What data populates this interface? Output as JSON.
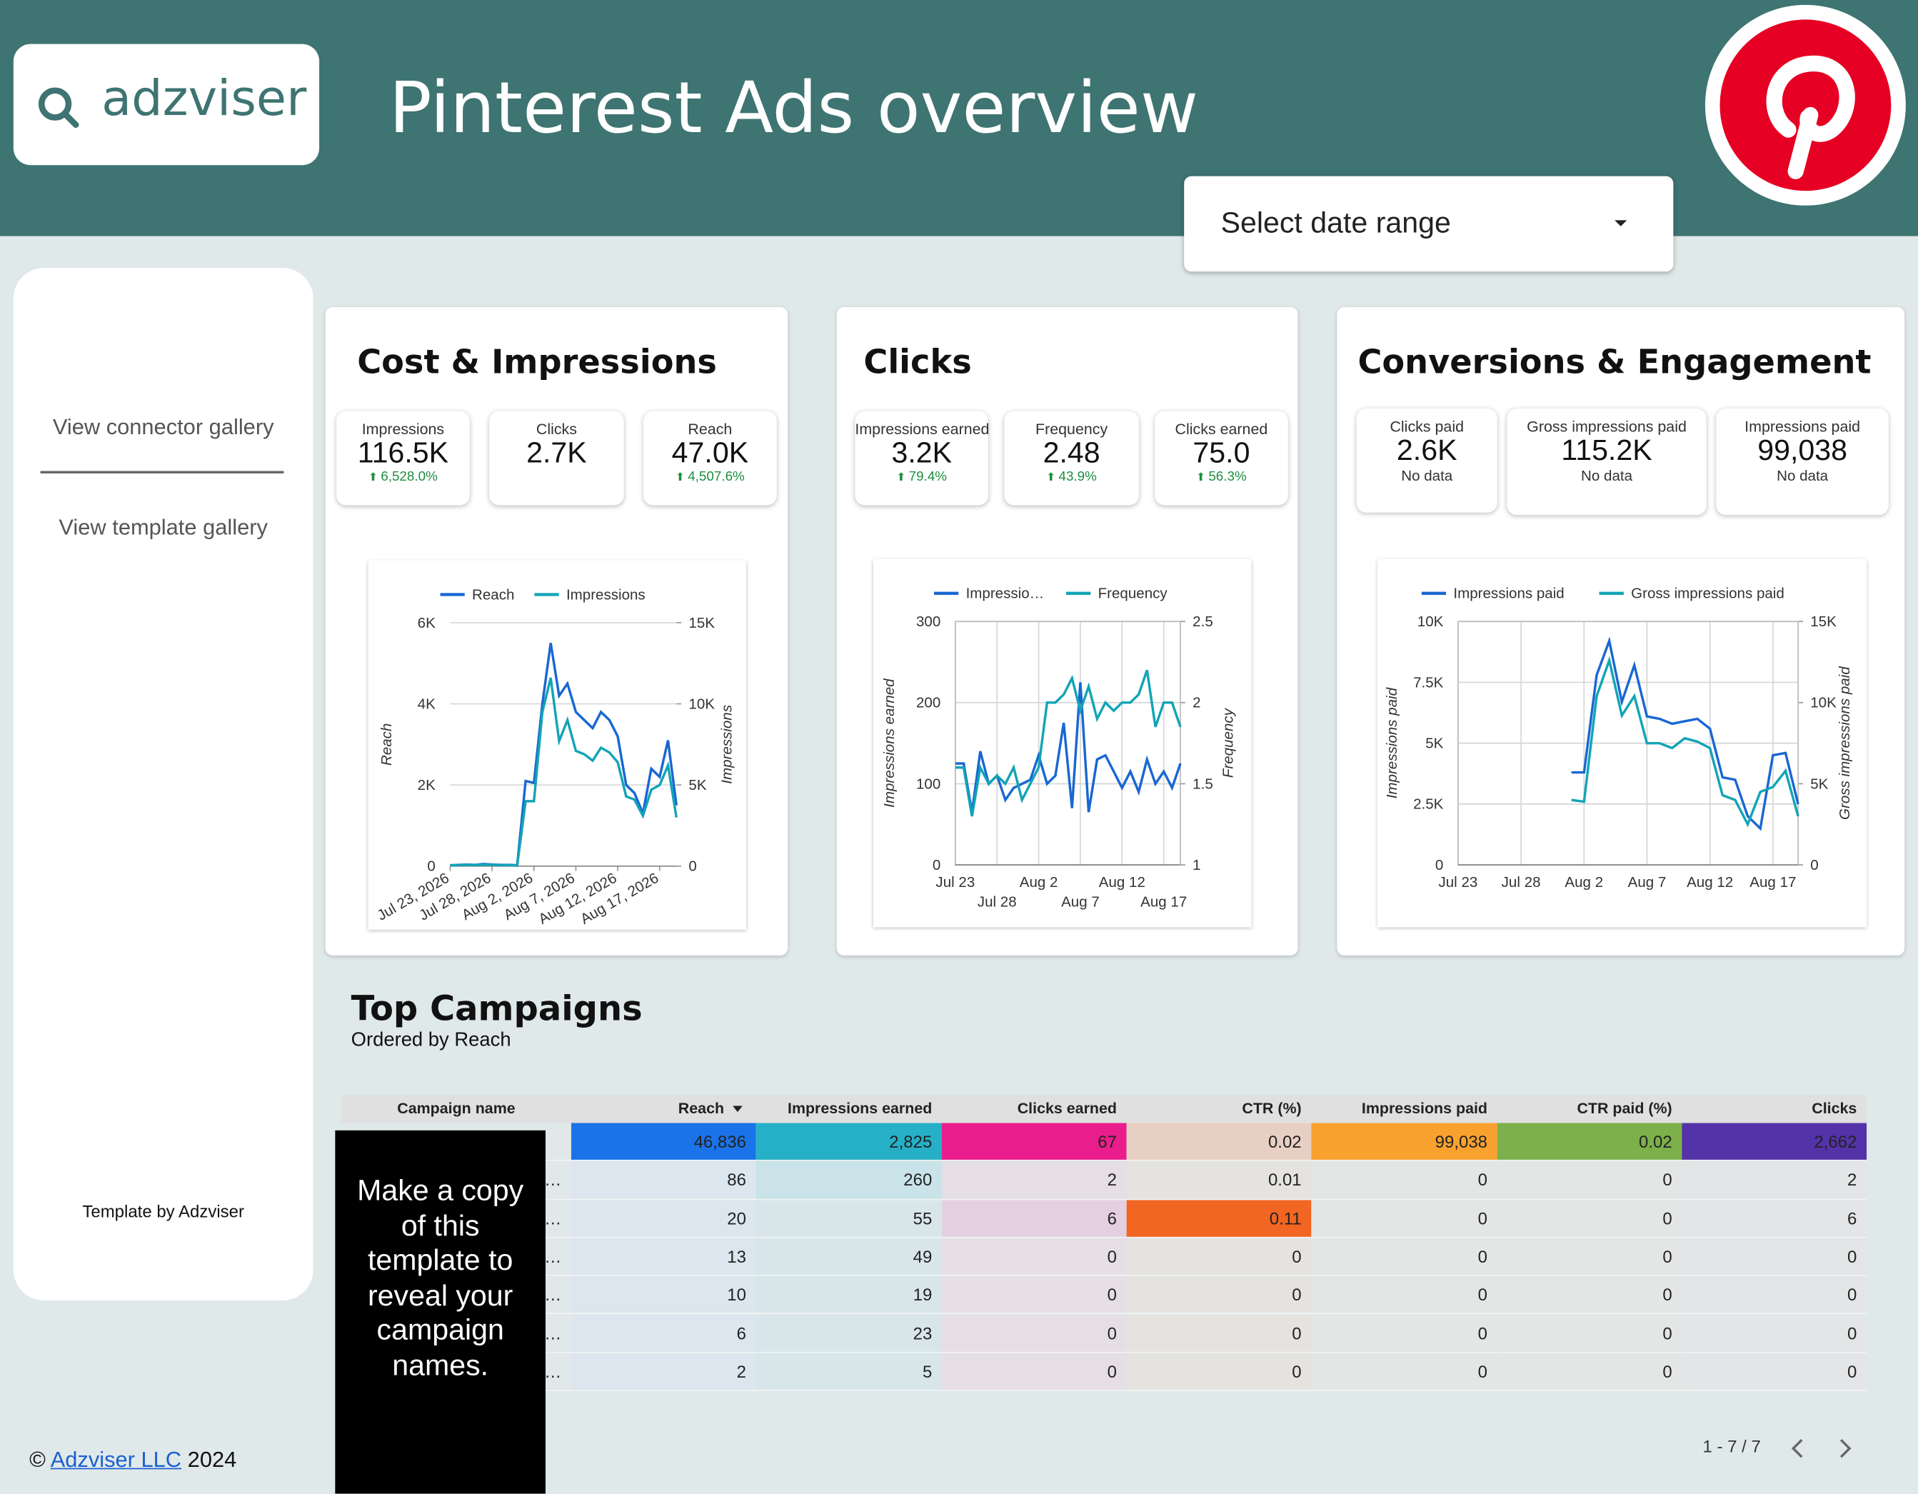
{
  "header": {
    "logo": "adzviser",
    "title": "Pinterest Ads overview",
    "date_range": "Select date range"
  },
  "sidebar": {
    "links": [
      "View connector gallery",
      "View template gallery"
    ],
    "credit": "Template by Adzviser"
  },
  "footer": {
    "prefix": "©",
    "link": "Adzviser LLC",
    "year": "2024"
  },
  "cards": [
    {
      "title": "Cost & Impressions",
      "kpis": [
        {
          "label": "Impressions",
          "value": "116.5K",
          "change": "6,528.0%"
        },
        {
          "label": "Clicks",
          "value": "2.7K"
        },
        {
          "label": "Reach",
          "value": "47.0K",
          "change": "4,507.6%"
        }
      ],
      "chart": {
        "type": "line",
        "xtick_style": "rotated",
        "grid": "y",
        "x": [
          "Jul 23, 2026",
          "Jul 24, 2026",
          "Jul 25, 2026",
          "Jul 26, 2026",
          "Jul 27, 2026",
          "Jul 28, 2026",
          "Jul 29, 2026",
          "Jul 30, 2026",
          "Jul 31, 2026",
          "Aug 1, 2026",
          "Aug 2, 2026",
          "Aug 3, 2026",
          "Aug 4, 2026",
          "Aug 5, 2026",
          "Aug 6, 2026",
          "Aug 7, 2026",
          "Aug 8, 2026",
          "Aug 9, 2026",
          "Aug 10, 2026",
          "Aug 11, 2026",
          "Aug 12, 2026",
          "Aug 13, 2026",
          "Aug 14, 2026",
          "Aug 15, 2026",
          "Aug 16, 2026",
          "Aug 17, 2026",
          "Aug 18, 2026",
          "Aug 19, 2026"
        ],
        "xticks": [
          "Jul 23, 2026",
          "Jul 28, 2026",
          "Aug 2, 2026",
          "Aug 7, 2026",
          "Aug 12, 2026",
          "Aug 17, 2026"
        ],
        "ylabel": "Reach",
        "y2label": "Impressions",
        "ylim": [
          0,
          6000
        ],
        "yticks": [
          0,
          {
            "value": 2000,
            "label": "2K"
          },
          {
            "value": 4000,
            "label": "4K"
          },
          {
            "value": 6000,
            "label": "6K"
          }
        ],
        "y2lim": [
          0,
          15000
        ],
        "y2ticks": [
          0,
          {
            "value": 5000,
            "label": "5K"
          },
          {
            "value": 10000,
            "label": "10K"
          },
          {
            "value": 15000,
            "label": "15K"
          }
        ],
        "series": [
          {
            "name": "Reach",
            "color": "#1967d2",
            "values": [
              20,
              30,
              40,
              30,
              50,
              40,
              30,
              30,
              20,
              2100,
              2050,
              4000,
              5500,
              4200,
              4500,
              3800,
              3600,
              3400,
              3800,
              3600,
              3200,
              2000,
              1800,
              1300,
              2400,
              2200,
              3100,
              1500
            ]
          },
          {
            "name": "Impressions",
            "color": "#12a4b6",
            "axis": "y2",
            "values": [
              50,
              60,
              80,
              60,
              90,
              80,
              60,
              60,
              40,
              4000,
              4000,
              9500,
              11600,
              7700,
              9000,
              7100,
              6900,
              6500,
              7300,
              7000,
              6400,
              4300,
              4100,
              3100,
              4700,
              5000,
              6200,
              3000
            ]
          }
        ]
      }
    },
    {
      "title": "Clicks",
      "kpis": [
        {
          "label": "Impressions earned",
          "value": "3.2K",
          "change": "79.4%"
        },
        {
          "label": "Frequency",
          "value": "2.48",
          "change": "43.9%"
        },
        {
          "label": "Clicks earned",
          "value": "75.0",
          "change": "56.3%"
        }
      ],
      "chart": {
        "type": "line",
        "xtick_style": "staggered",
        "grid": "both",
        "x": [
          "Jul 23",
          "Jul 24",
          "Jul 25",
          "Jul 26",
          "Jul 27",
          "Jul 28",
          "Jul 29",
          "Jul 30",
          "Jul 31",
          "Aug 1",
          "Aug 2",
          "Aug 3",
          "Aug 4",
          "Aug 5",
          "Aug 6",
          "Aug 7",
          "Aug 8",
          "Aug 9",
          "Aug 10",
          "Aug 11",
          "Aug 12",
          "Aug 13",
          "Aug 14",
          "Aug 15",
          "Aug 16",
          "Aug 17",
          "Aug 18",
          "Aug 19"
        ],
        "xticks": [
          "Jul 23",
          "Jul 28",
          "Aug 2",
          "Aug 7",
          "Aug 12",
          "Aug 17"
        ],
        "ylabel": "Impressions earned",
        "y2label": "Frequency",
        "ylim": [
          0,
          300
        ],
        "yticks": [
          0,
          100,
          200,
          300
        ],
        "y2lim": [
          1,
          2.5
        ],
        "y2ticks": [
          1,
          1.5,
          2,
          2.5
        ],
        "series": [
          {
            "name": "Impressio…",
            "color": "#1967d2",
            "values": [
              125,
              125,
              65,
              140,
              100,
              110,
              80,
              95,
              100,
              105,
              135,
              100,
              110,
              175,
              70,
              225,
              65,
              130,
              135,
              115,
              95,
              115,
              90,
              130,
              100,
              115,
              95,
              125
            ]
          },
          {
            "name": "Frequency",
            "color": "#12a4b6",
            "axis": "y2",
            "values": [
              1.6,
              1.6,
              1.3,
              1.6,
              1.5,
              1.55,
              1.5,
              1.6,
              1.4,
              1.5,
              1.6,
              2.0,
              2.0,
              2.05,
              2.15,
              1.95,
              2.1,
              1.9,
              2.0,
              1.95,
              2.0,
              2.0,
              2.05,
              2.2,
              1.85,
              2.0,
              2.0,
              1.85
            ]
          }
        ]
      }
    },
    {
      "title": "Conversions & Engagement",
      "kpis": [
        {
          "label": "Clicks paid",
          "value": "2.6K",
          "note": "No data"
        },
        {
          "label": "Gross impressions paid",
          "value": "115.2K",
          "note": "No data"
        },
        {
          "label": "Impressions paid",
          "value": "99,038",
          "note": "No data"
        }
      ],
      "chart": {
        "type": "line",
        "xtick_style": "flat",
        "grid": "both",
        "x": [
          "Jul 23",
          "Jul 24",
          "Jul 25",
          "Jul 26",
          "Jul 27",
          "Jul 28",
          "Jul 29",
          "Jul 30",
          "Jul 31",
          "Aug 1",
          "Aug 2",
          "Aug 3",
          "Aug 4",
          "Aug 5",
          "Aug 6",
          "Aug 7",
          "Aug 8",
          "Aug 9",
          "Aug 10",
          "Aug 11",
          "Aug 12",
          "Aug 13",
          "Aug 14",
          "Aug 15",
          "Aug 16",
          "Aug 17",
          "Aug 18",
          "Aug 19"
        ],
        "xticks": [
          "Jul 23",
          "Jul 28",
          "Aug 2",
          "Aug 7",
          "Aug 12",
          "Aug 17"
        ],
        "ylabel": "Impressions paid",
        "y2label": "Gross impressions paid",
        "ylim": [
          0,
          10000
        ],
        "yticks": [
          0,
          {
            "value": 2500,
            "label": "2.5K"
          },
          {
            "value": 5000,
            "label": "5K"
          },
          {
            "value": 7500,
            "label": "7.5K"
          },
          {
            "value": 10000,
            "label": "10K"
          }
        ],
        "y2lim": [
          0,
          15000
        ],
        "y2ticks": [
          0,
          {
            "value": 5000,
            "label": "5K"
          },
          {
            "value": 10000,
            "label": "10K"
          },
          {
            "value": 15000,
            "label": "15K"
          }
        ],
        "series": [
          {
            "name": "Impressions paid",
            "color": "#1967d2",
            "values": [
              null,
              null,
              null,
              null,
              null,
              null,
              null,
              null,
              null,
              3800,
              3800,
              7800,
              9200,
              6700,
              8200,
              6100,
              6000,
              5800,
              5900,
              6000,
              5600,
              3600,
              3500,
              2000,
              1500,
              4500,
              4600,
              2500
            ]
          },
          {
            "name": "Gross impressions paid",
            "color": "#12a4b6",
            "axis": "y2",
            "values": [
              null,
              null,
              null,
              null,
              null,
              null,
              null,
              null,
              null,
              4000,
              3900,
              10400,
              12600,
              9200,
              10400,
              7500,
              7500,
              7200,
              7800,
              7600,
              7200,
              4300,
              4000,
              2500,
              4500,
              4800,
              5800,
              3000
            ]
          }
        ]
      }
    }
  ],
  "table": {
    "title": "Top Campaigns",
    "subtitle": "Ordered by Reach",
    "overlay": "Make a copy of this template to reveal your campaign names.",
    "columns": [
      "Campaign name",
      "Reach",
      "Impressions earned",
      "Clicks earned",
      "CTR (%)",
      "Impressions paid",
      "CTR paid (%)",
      "Clicks"
    ],
    "rows": [
      [
        null,
        "46,836",
        "2,825",
        "67",
        "0.02",
        "99,038",
        "0.02",
        "2,662"
      ],
      [
        "n…",
        "86",
        "260",
        "2",
        "0.01",
        "0",
        "0",
        "2"
      ],
      [
        "i…",
        "20",
        "55",
        "6",
        "0.11",
        "0",
        "0",
        "6"
      ],
      [
        "…",
        "13",
        "49",
        "0",
        "0",
        "0",
        "0",
        "0"
      ],
      [
        "…",
        "10",
        "19",
        "0",
        "0",
        "0",
        "0",
        "0"
      ],
      [
        "…",
        "6",
        "23",
        "0",
        "0",
        "0",
        "0",
        "0"
      ],
      [
        "…",
        "2",
        "5",
        "0",
        "0",
        "0",
        "0",
        "0"
      ]
    ],
    "pagination": "1 - 7 / 7"
  }
}
